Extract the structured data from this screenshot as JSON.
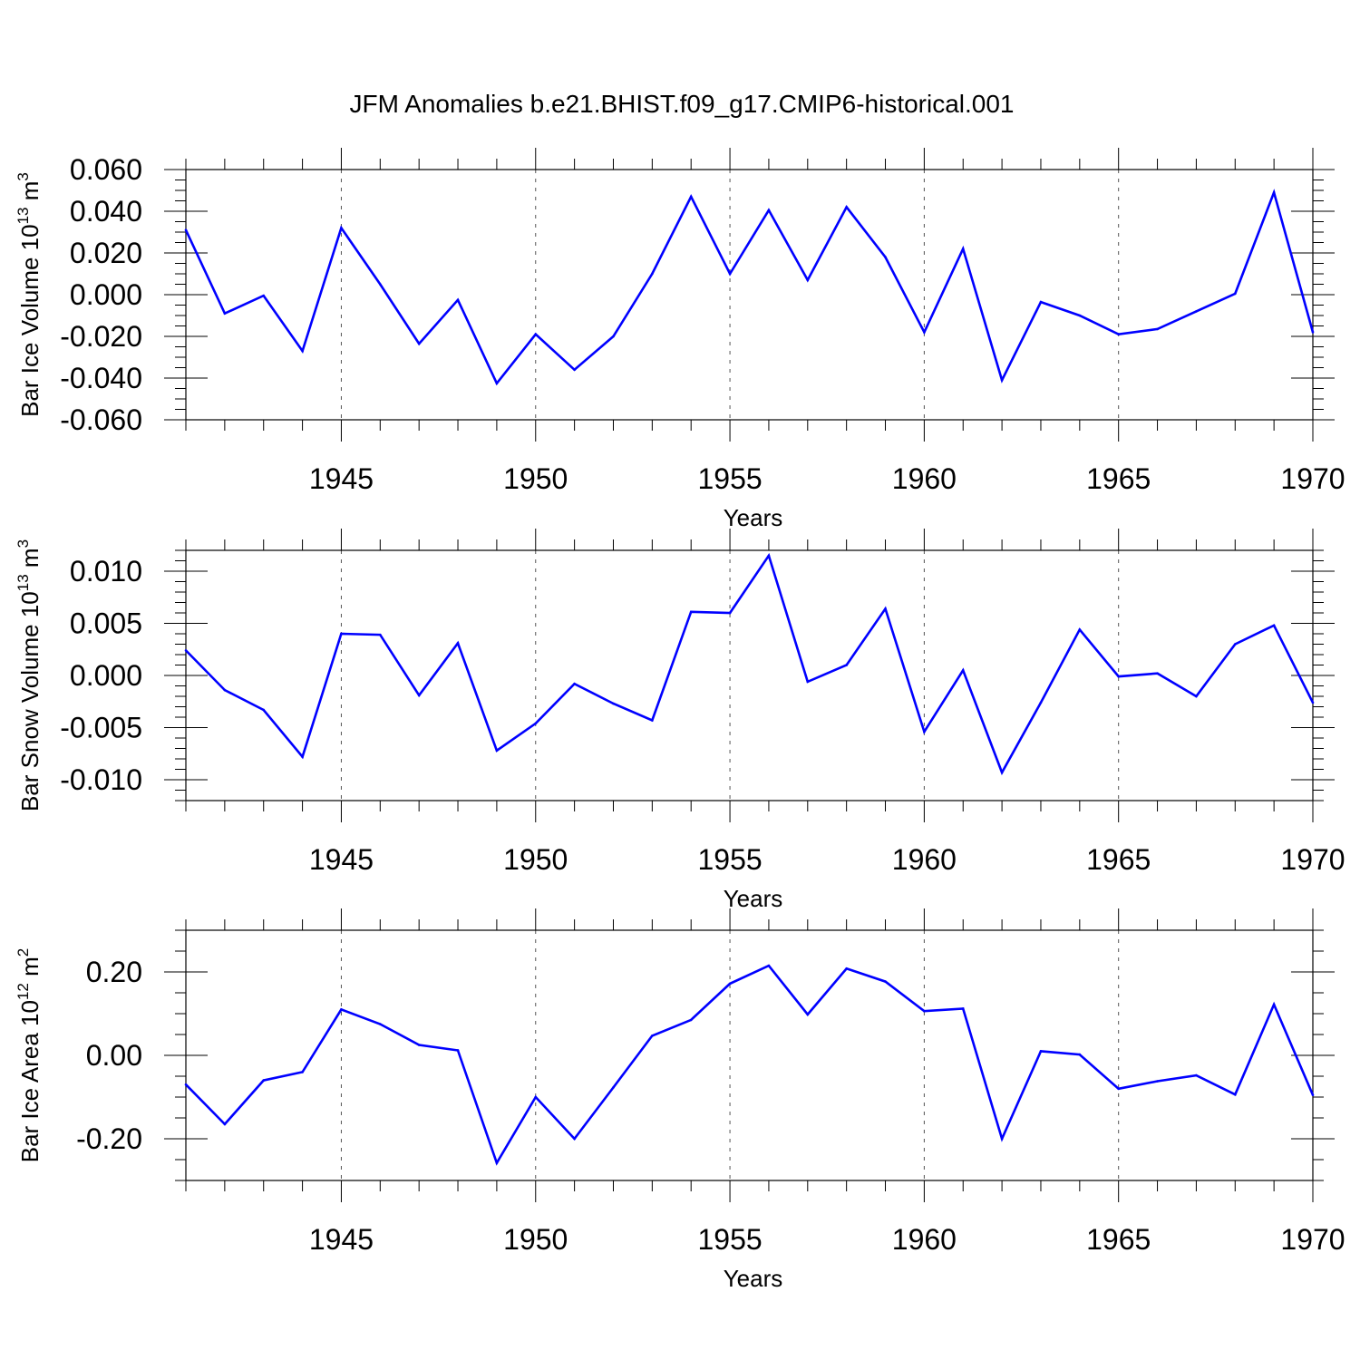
{
  "figure": {
    "title": "JFM Anomalies b.e21.BHIST.f09_g17.CMIP6-historical.001",
    "line_color": "#0000ff"
  },
  "chart_data": [
    {
      "type": "line",
      "title": "",
      "xlabel": "Years",
      "ylabel": "Bar Ice Volume 10",
      "ylabel_sup1": "13",
      "ylabel_unit": " m",
      "ylabel_sup2": "3",
      "xlim": [
        1941,
        1970
      ],
      "ylim": [
        -0.06,
        0.06
      ],
      "x_ticks": [
        1945,
        1950,
        1955,
        1960,
        1965,
        1970
      ],
      "y_ticks": [
        -0.06,
        -0.04,
        -0.02,
        0.0,
        0.02,
        0.04,
        0.06
      ],
      "y_tick_labels": [
        "-0.060",
        "-0.040",
        "-0.020",
        "0.000",
        "0.020",
        "0.040",
        "0.060"
      ],
      "y_minor_step": 0.005,
      "grid": "vertical-dashed",
      "series": [
        {
          "x": [
            1941,
            1942,
            1943,
            1944,
            1945,
            1946,
            1947,
            1948,
            1949,
            1950,
            1951,
            1952,
            1953,
            1954,
            1955,
            1956,
            1957,
            1958,
            1959,
            1960,
            1961,
            1962,
            1963,
            1964,
            1965,
            1966,
            1967,
            1968,
            1969,
            1970
          ],
          "values": [
            0.031,
            -0.009,
            -0.0005,
            -0.027,
            0.032,
            0.005,
            -0.0235,
            -0.0025,
            -0.0425,
            -0.019,
            -0.036,
            -0.02,
            0.01,
            0.047,
            0.01,
            0.0405,
            0.007,
            0.042,
            0.018,
            -0.018,
            0.022,
            -0.041,
            -0.0035,
            -0.01,
            -0.019,
            -0.0165,
            -0.008,
            0.0005,
            0.049,
            -0.018
          ]
        }
      ]
    },
    {
      "type": "line",
      "title": "",
      "xlabel": "Years",
      "ylabel": "Bar Snow Volume 10",
      "ylabel_sup1": "13",
      "ylabel_unit": " m",
      "ylabel_sup2": "3",
      "xlim": [
        1941,
        1970
      ],
      "ylim": [
        -0.012,
        0.012
      ],
      "x_ticks": [
        1945,
        1950,
        1955,
        1960,
        1965,
        1970
      ],
      "y_ticks": [
        -0.01,
        -0.005,
        0.0,
        0.005,
        0.01
      ],
      "y_tick_labels": [
        "-0.010",
        "-0.005",
        "0.000",
        "0.005",
        "0.010"
      ],
      "y_minor_step": 0.001,
      "grid": "vertical-dashed",
      "series": [
        {
          "x": [
            1941,
            1942,
            1943,
            1944,
            1945,
            1946,
            1947,
            1948,
            1949,
            1950,
            1951,
            1952,
            1953,
            1954,
            1955,
            1956,
            1957,
            1958,
            1959,
            1960,
            1961,
            1962,
            1963,
            1964,
            1965,
            1966,
            1967,
            1968,
            1969,
            1970
          ],
          "values": [
            0.0024,
            -0.0014,
            -0.0033,
            -0.0078,
            0.004,
            0.0039,
            -0.0019,
            0.0031,
            -0.0072,
            -0.0046,
            -0.0008,
            -0.0027,
            -0.0043,
            0.0061,
            0.006,
            0.0115,
            -0.0006,
            0.001,
            0.0064,
            -0.0054,
            0.0005,
            -0.0093,
            -0.0026,
            0.0044,
            -0.0001,
            0.0002,
            -0.002,
            0.003,
            0.0048,
            -0.0026
          ]
        }
      ]
    },
    {
      "type": "line",
      "title": "",
      "xlabel": "Years",
      "ylabel": "Bar Ice Area 10",
      "ylabel_sup1": "12",
      "ylabel_unit": " m",
      "ylabel_sup2": "2",
      "xlim": [
        1941,
        1970
      ],
      "ylim": [
        -0.3,
        0.3
      ],
      "x_ticks": [
        1945,
        1950,
        1955,
        1960,
        1965,
        1970
      ],
      "y_ticks": [
        -0.2,
        0.0,
        0.2
      ],
      "y_tick_labels": [
        "-0.20",
        "0.00",
        "0.20"
      ],
      "y_minor_step": 0.05,
      "grid": "vertical-dashed",
      "series": [
        {
          "x": [
            1941,
            1942,
            1943,
            1944,
            1945,
            1946,
            1947,
            1948,
            1949,
            1950,
            1951,
            1952,
            1953,
            1954,
            1955,
            1956,
            1957,
            1958,
            1959,
            1960,
            1961,
            1962,
            1963,
            1964,
            1965,
            1966,
            1967,
            1968,
            1969,
            1970
          ],
          "values": [
            -0.07,
            -0.165,
            -0.06,
            -0.04,
            0.11,
            0.075,
            0.025,
            0.012,
            -0.258,
            -0.1,
            -0.2,
            -0.077,
            0.047,
            0.085,
            0.172,
            0.215,
            0.098,
            0.208,
            0.177,
            0.106,
            0.112,
            -0.2,
            0.01,
            0.002,
            -0.08,
            -0.062,
            -0.048,
            -0.094,
            0.122,
            -0.095
          ]
        }
      ]
    }
  ]
}
